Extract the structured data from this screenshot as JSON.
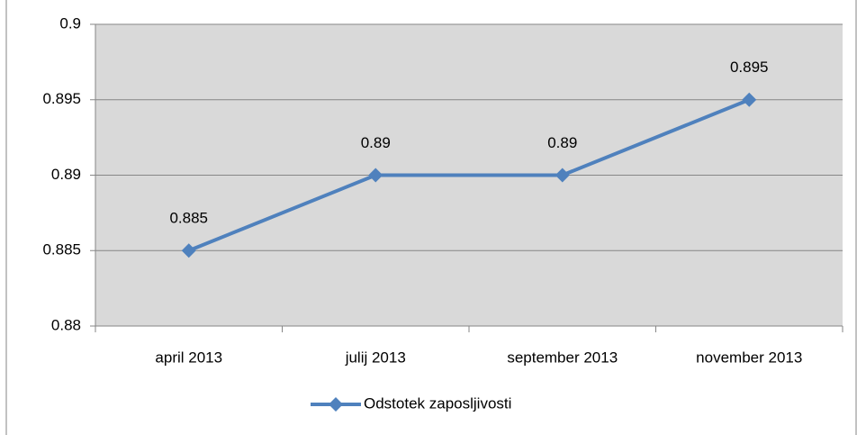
{
  "chart_data": {
    "type": "line",
    "categories": [
      "april 2013",
      "julij 2013",
      "september 2013",
      "november 2013"
    ],
    "series": [
      {
        "name": "Odstotek zaposljivosti",
        "color": "#4f81bd",
        "values": [
          0.885,
          0.89,
          0.89,
          0.895
        ]
      }
    ],
    "ylim": [
      0.88,
      0.9
    ],
    "yticks": [
      0.88,
      0.885,
      0.89,
      0.895,
      0.9
    ],
    "grid": true,
    "legend": "bottom",
    "data_labels": true
  }
}
